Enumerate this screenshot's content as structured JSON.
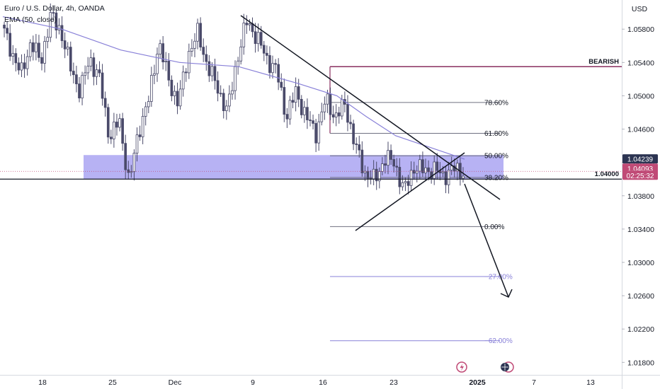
{
  "header": {
    "symbol_line": "Euro / U.S. Dollar, 4h, OANDA",
    "indicator_line": "EMA (50, close)",
    "currency": "USD"
  },
  "colors": {
    "candle_up": "#ffffff",
    "candle_down": "#4a4a6a",
    "ema": "#8880d8",
    "zone": "#9f98f0",
    "bearish": "#8a2f5f",
    "trend": "#131722",
    "fib_gray": "#6f7080",
    "fib_blue": "#8880d8",
    "badge_blue": "#2c3452",
    "badge_pink": "#c04a76"
  },
  "chart_data": {
    "type": "candlestick",
    "title": "Euro / U.S. Dollar, 4h, OANDA",
    "indicator": "EMA (50, close)",
    "y_axis": {
      "range": [
        1.0165,
        1.0615
      ],
      "ticks": [
        "1.05800",
        "1.05400",
        "1.05000",
        "1.04600",
        "1.04200",
        "1.03800",
        "1.03400",
        "1.03000",
        "1.02600",
        "1.02200",
        "1.01800"
      ]
    },
    "x_axis": {
      "ticks": [
        "18",
        "25",
        "Dec",
        "9",
        "16",
        "23",
        "2025",
        "7",
        "13"
      ],
      "bold_tick": "2025"
    },
    "price_path": [
      [
        0,
        1.0585
      ],
      [
        1,
        1.0555
      ],
      [
        2,
        1.0525
      ],
      [
        3,
        1.0565
      ],
      [
        4,
        1.054
      ],
      [
        5,
        1.0595
      ],
      [
        6,
        1.058
      ],
      [
        7,
        1.0535
      ],
      [
        8,
        1.0505
      ],
      [
        9,
        1.0545
      ],
      [
        10,
        1.052
      ],
      [
        11,
        1.045
      ],
      [
        12,
        1.047
      ],
      [
        13,
        1.0395
      ],
      [
        14,
        1.046
      ],
      [
        15,
        1.0495
      ],
      [
        16,
        1.0565
      ],
      [
        17,
        1.052
      ],
      [
        18,
        1.049
      ],
      [
        19,
        1.055
      ],
      [
        20,
        1.0575
      ],
      [
        21,
        1.0535
      ],
      [
        22,
        1.051
      ],
      [
        23,
        1.048
      ],
      [
        24,
        1.0545
      ],
      [
        25,
        1.059
      ],
      [
        26,
        1.057
      ],
      [
        27,
        1.0545
      ],
      [
        28,
        1.053
      ],
      [
        29,
        1.0475
      ],
      [
        30,
        1.0505
      ],
      [
        31,
        1.0475
      ],
      [
        32,
        1.0455
      ],
      [
        33,
        1.0495
      ],
      [
        34,
        1.0475
      ],
      [
        35,
        1.049
      ],
      [
        36,
        1.044
      ],
      [
        37,
        1.0408
      ],
      [
        38,
        1.0398
      ],
      [
        39,
        1.0425
      ],
      [
        40,
        1.042
      ],
      [
        41,
        1.0385
      ],
      [
        42,
        1.0415
      ],
      [
        43,
        1.041
      ],
      [
        44,
        1.0412
      ],
      [
        45,
        1.0404
      ],
      [
        46,
        1.0412
      ],
      [
        47,
        1.0409
      ]
    ],
    "ema_path": [
      [
        0,
        1.0595
      ],
      [
        6,
        1.058
      ],
      [
        12,
        1.0555
      ],
      [
        18,
        1.054
      ],
      [
        24,
        1.0535
      ],
      [
        30,
        1.0515
      ],
      [
        34,
        1.05
      ],
      [
        37,
        1.0475
      ],
      [
        40,
        1.0452
      ],
      [
        43,
        1.044
      ],
      [
        46,
        1.0428
      ],
      [
        47,
        1.0424
      ]
    ],
    "horizontal_levels": [
      {
        "label": "BEARISH",
        "price": 1.0535
      },
      {
        "label": "1.04000",
        "price": 1.04
      }
    ],
    "fibonacci": [
      {
        "label": "78.60%",
        "price": 1.0492
      },
      {
        "label": "61.80%",
        "price": 1.0455
      },
      {
        "label": "50.00%",
        "price": 1.0428
      },
      {
        "label": "38.20%",
        "price": 1.0402
      },
      {
        "label": "0.00%",
        "price": 1.0343
      },
      {
        "label": "−27.00%",
        "price": 1.0283
      },
      {
        "label": "−62.00%",
        "price": 1.0206
      }
    ],
    "price_badges": [
      {
        "label": "1.04239",
        "price": 1.04239
      },
      {
        "label": "1.04093",
        "price": 1.04093
      },
      {
        "label": "02:25:32",
        "price": 1.0398
      }
    ]
  }
}
